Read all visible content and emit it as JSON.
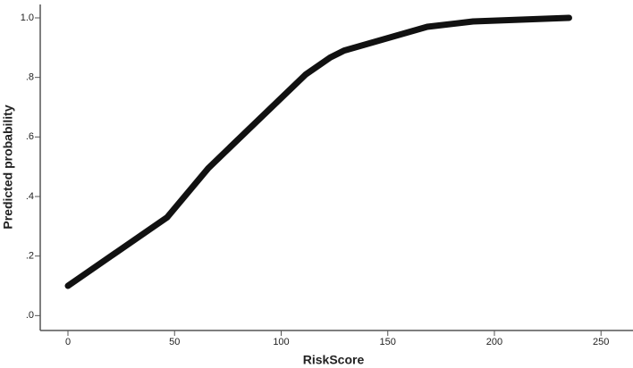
{
  "chart_data": {
    "type": "line",
    "x_label": "RiskScore",
    "y_label": "Predicted probability",
    "x": [
      0,
      46.5,
      65.8,
      111.5,
      123,
      129.5,
      168.5,
      190,
      235
    ],
    "series": [
      {
        "color": "#111111",
        "values": [
          0.1,
          0.33,
          0.495,
          0.81,
          0.867,
          0.89,
          0.97,
          0.988,
          1.0
        ]
      }
    ],
    "xlim": [
      -13,
      265
    ],
    "xticks": [
      0,
      50,
      100,
      150,
      200,
      250
    ],
    "ylim": [
      -0.05,
      1.045
    ],
    "yticks": [
      {
        "value": 0,
        "label": ".0"
      },
      {
        "value": 0.2,
        "label": ".2"
      },
      {
        "value": 0.4,
        "label": ".4"
      },
      {
        "value": 0.6,
        "label": ".6"
      },
      {
        "value": 0.8,
        "label": ".8"
      },
      {
        "value": 1.0,
        "label": "1.0"
      }
    ],
    "grid": false
  }
}
